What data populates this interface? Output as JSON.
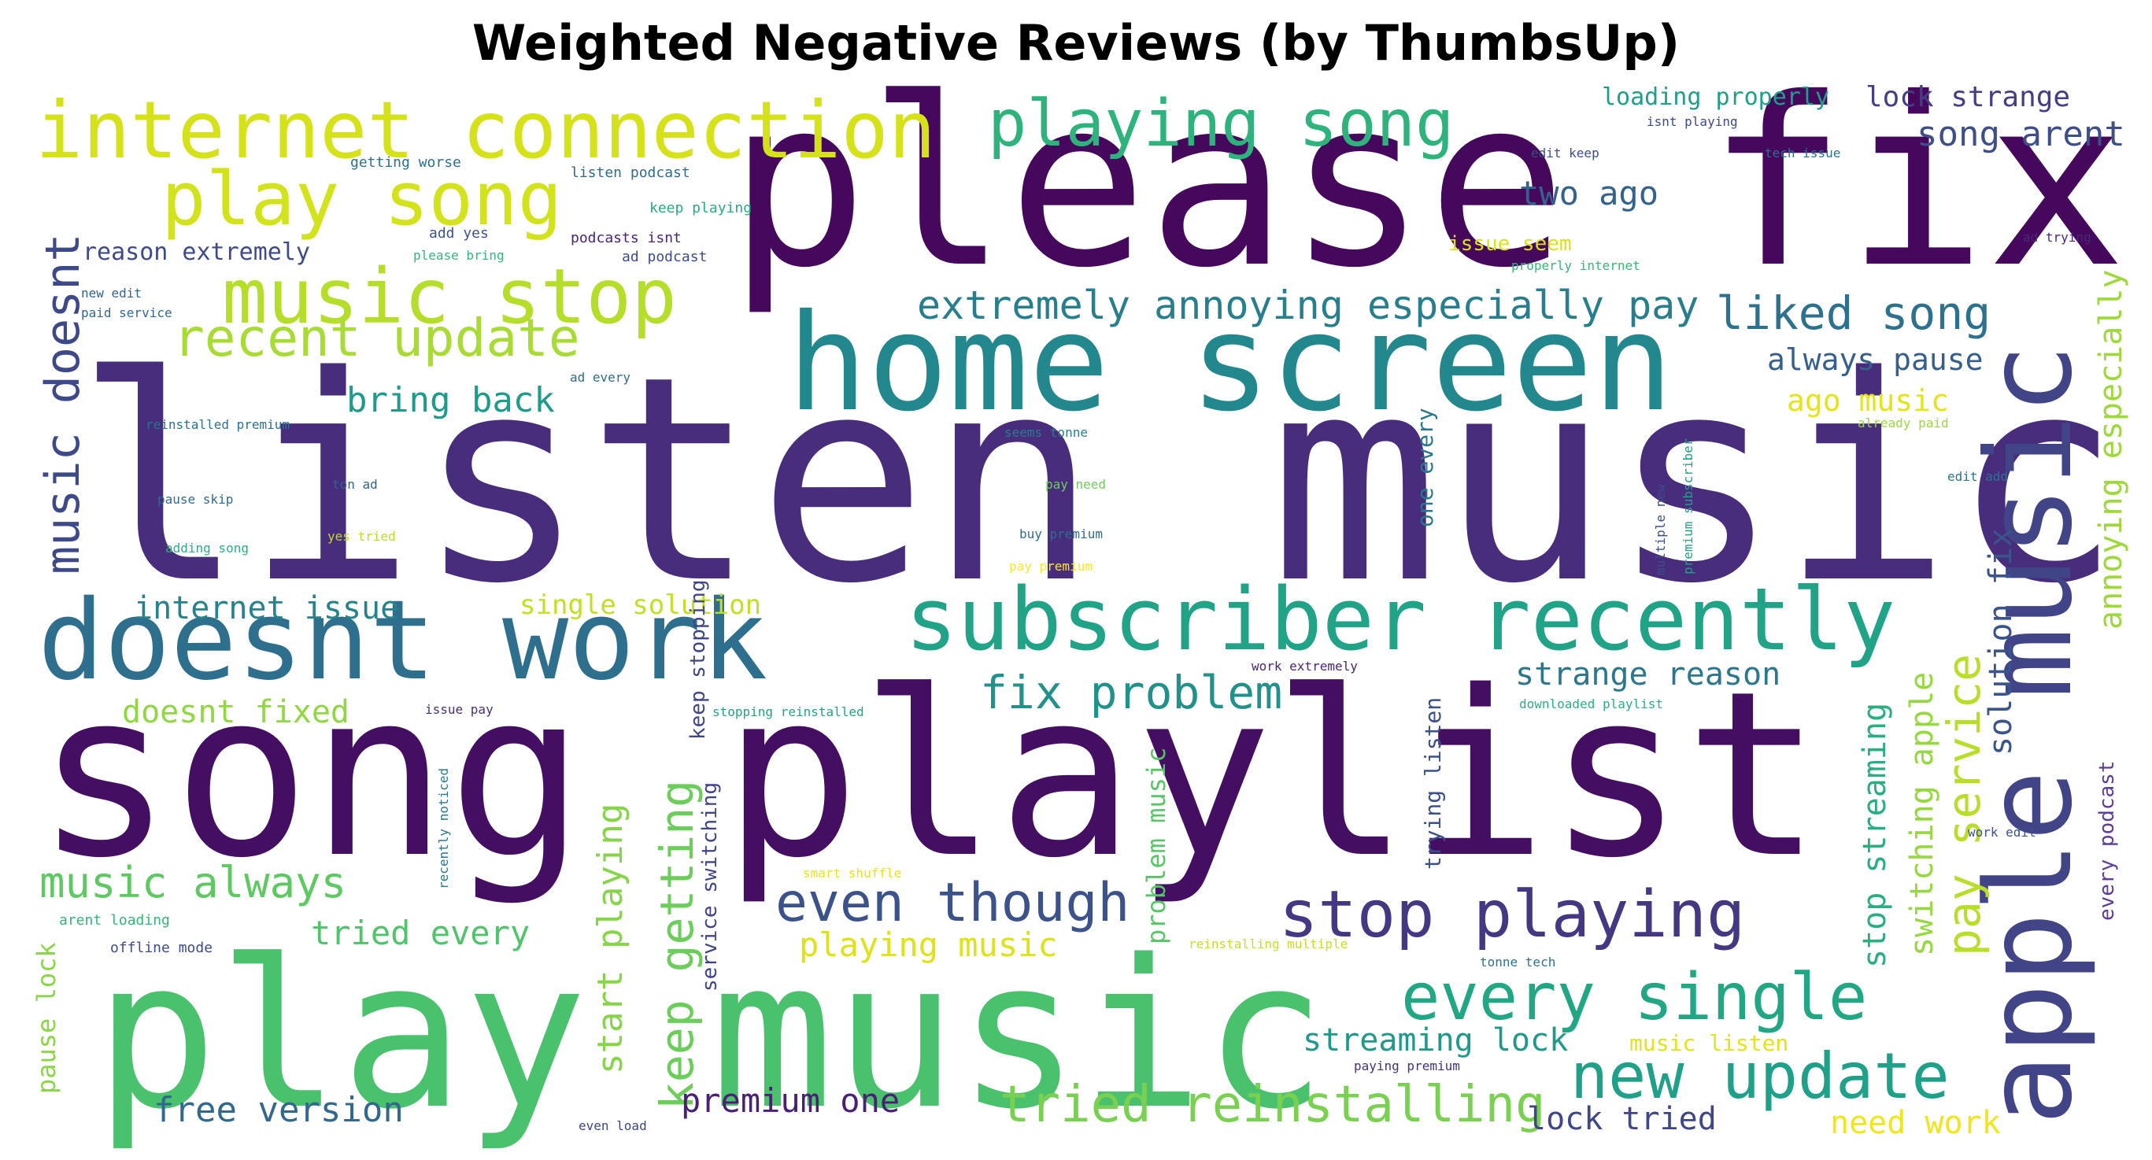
{
  "title": "Weighted Negative Reviews (by ThumbsUp)",
  "words": [
    {
      "text": "listen music",
      "color": "#472d7b"
    },
    {
      "text": "song playlist",
      "color": "#440f62"
    },
    {
      "text": "please fix",
      "color": "#46085c"
    },
    {
      "text": "play music",
      "color": "#4ac26d"
    },
    {
      "text": "home screen",
      "color": "#23888e"
    },
    {
      "text": "doesnt work",
      "color": "#2e6f8e"
    },
    {
      "text": "apple music",
      "color": "#414487"
    },
    {
      "text": "subscriber recently",
      "color": "#20a386"
    },
    {
      "text": "internet connection",
      "color": "#d5e21a"
    },
    {
      "text": "music stop",
      "color": "#b5de2b"
    },
    {
      "text": "play song",
      "color": "#d2e21b"
    },
    {
      "text": "playing song",
      "color": "#2eb37c"
    },
    {
      "text": "recent update",
      "color": "#a8db34"
    },
    {
      "text": "stop playing",
      "color": "#453781"
    },
    {
      "text": "every single",
      "color": "#22a785"
    },
    {
      "text": "even though",
      "color": "#3b528b"
    },
    {
      "text": "new update",
      "color": "#1fa088"
    },
    {
      "text": "tried reinstalling",
      "color": "#7ad151"
    },
    {
      "text": "music doesnt",
      "color": "#3e4989"
    },
    {
      "text": "keep getting",
      "color": "#6ccd5a"
    },
    {
      "text": "extremely annoying especially pay",
      "color": "#277f8e"
    },
    {
      "text": "liked song",
      "color": "#2c728e"
    },
    {
      "text": "fix problem",
      "color": "#21918c"
    },
    {
      "text": "music always",
      "color": "#5ec962"
    },
    {
      "text": "pay service",
      "color": "#b8de29"
    },
    {
      "text": "annoying especially",
      "color": "#9dd93b"
    },
    {
      "text": "start playing",
      "color": "#86d549"
    },
    {
      "text": "free version",
      "color": "#31688e"
    },
    {
      "text": "premium one",
      "color": "#482173"
    },
    {
      "text": "two ago",
      "color": "#33638d"
    },
    {
      "text": "song arent",
      "color": "#3d4e8a"
    },
    {
      "text": "lock strange",
      "color": "#433e85"
    },
    {
      "text": "always pause",
      "color": "#355f8d"
    },
    {
      "text": "ago music",
      "color": "#e5e419"
    },
    {
      "text": "bring back",
      "color": "#1e9b8a"
    },
    {
      "text": "internet issue",
      "color": "#25838e"
    },
    {
      "text": "single solution",
      "color": "#c2df23"
    },
    {
      "text": "doesnt fixed",
      "color": "#90d743"
    },
    {
      "text": "strange reason",
      "color": "#2a778e"
    },
    {
      "text": "solution fix",
      "color": "#3a548c"
    },
    {
      "text": "switching apple",
      "color": "#95d840"
    },
    {
      "text": "stop streaming",
      "color": "#29af7f"
    },
    {
      "text": "streaming lock",
      "color": "#1f998a"
    },
    {
      "text": "tried every",
      "color": "#4fc46a"
    },
    {
      "text": "playing music",
      "color": "#dde318"
    },
    {
      "text": "lock tried",
      "color": "#3f4788"
    },
    {
      "text": "need work",
      "color": "#f1e51d"
    },
    {
      "text": "music listen",
      "color": "#e2e418"
    },
    {
      "text": "problem music",
      "color": "#56c667"
    },
    {
      "text": "keep stopping",
      "color": "#404588"
    },
    {
      "text": "service switching",
      "color": "#414487"
    },
    {
      "text": "trying listen",
      "color": "#3b518b"
    },
    {
      "text": "one every",
      "color": "#2a768e"
    },
    {
      "text": "every podcast",
      "color": "#5e3c99"
    },
    {
      "text": "pause lock",
      "color": "#8bd646"
    },
    {
      "text": "reason extremely",
      "color": "#3e4a89"
    },
    {
      "text": "issue seem",
      "color": "#dae319"
    },
    {
      "text": "loading properly",
      "color": "#1f9e89"
    },
    {
      "text": "getting worse",
      "color": "#2c718e"
    },
    {
      "text": "listen podcast",
      "color": "#2f6c8e"
    },
    {
      "text": "keep playing",
      "color": "#26ad81"
    },
    {
      "text": "add yes",
      "color": "#3b528b"
    },
    {
      "text": "podcasts isnt",
      "color": "#482475"
    },
    {
      "text": "please bring",
      "color": "#35b779"
    },
    {
      "text": "ad podcast",
      "color": "#3e4c8a"
    },
    {
      "text": "new edit",
      "color": "#33638d"
    },
    {
      "text": "paid service",
      "color": "#31688e"
    },
    {
      "text": "isnt playing",
      "color": "#3f4889"
    },
    {
      "text": "edit keep",
      "color": "#3e4c8a"
    },
    {
      "text": "tech issue",
      "color": "#2d708e"
    },
    {
      "text": "properly internet",
      "color": "#38b977"
    },
    {
      "text": "ad trying",
      "color": "#482878"
    },
    {
      "text": "ad every",
      "color": "#2e6d8e"
    },
    {
      "text": "reinstalled premium",
      "color": "#2c738e"
    },
    {
      "text": "seems tonne",
      "color": "#287d8e"
    },
    {
      "text": "already paid",
      "color": "#9bd93c"
    },
    {
      "text": "pause skip",
      "color": "#306a8e"
    },
    {
      "text": "ton ad",
      "color": "#33638d"
    },
    {
      "text": "pay need",
      "color": "#6ece58"
    },
    {
      "text": "edit add",
      "color": "#2b748e"
    },
    {
      "text": "adding song",
      "color": "#2ab07f"
    },
    {
      "text": "yes tried",
      "color": "#bade28"
    },
    {
      "text": "buy premium",
      "color": "#2e6e8e"
    },
    {
      "text": "pay premium",
      "color": "#fde725"
    },
    {
      "text": "multiple new",
      "color": "#3d4d8a"
    },
    {
      "text": "premium subscriber",
      "color": "#1fa187"
    },
    {
      "text": "work extremely",
      "color": "#482677"
    },
    {
      "text": "issue pay",
      "color": "#472f7d"
    },
    {
      "text": "stopping reinstalled",
      "color": "#21a685"
    },
    {
      "text": "downloaded playlist",
      "color": "#2ab07f"
    },
    {
      "text": "recently noticed",
      "color": "#2a788e"
    },
    {
      "text": "smart shuffle",
      "color": "#e7e419"
    },
    {
      "text": "work edit",
      "color": "#3a538b"
    },
    {
      "text": "arent loading",
      "color": "#34b679"
    },
    {
      "text": "offline mode",
      "color": "#3e4a89"
    },
    {
      "text": "reinstalling multiple",
      "color": "#c8e020"
    },
    {
      "text": "tonne tech",
      "color": "#2c738e"
    },
    {
      "text": "paying premium",
      "color": "#46327e"
    },
    {
      "text": "even load",
      "color": "#404688"
    }
  ]
}
